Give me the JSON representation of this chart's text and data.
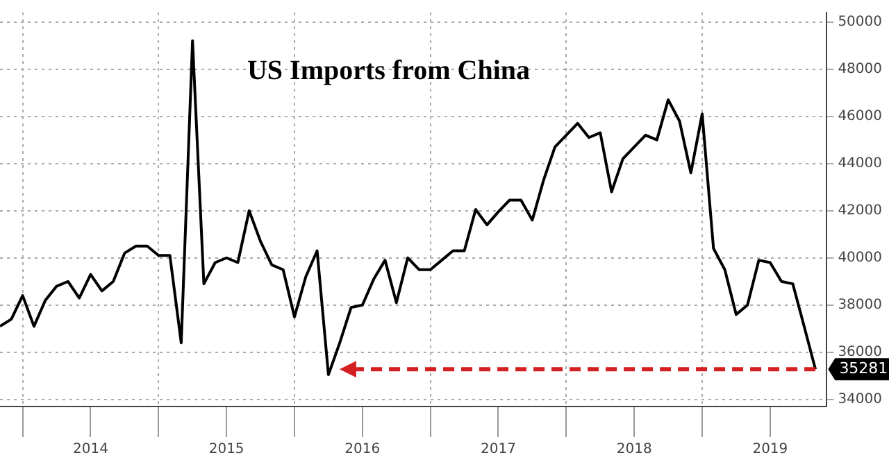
{
  "chart_data": {
    "type": "line",
    "title": "US Imports from China",
    "x": [
      "2013-11",
      "2013-12",
      "2014-01",
      "2014-02",
      "2014-03",
      "2014-04",
      "2014-05",
      "2014-06",
      "2014-07",
      "2014-08",
      "2014-09",
      "2014-10",
      "2014-11",
      "2014-12",
      "2015-01",
      "2015-02",
      "2015-03",
      "2015-04",
      "2015-05",
      "2015-06",
      "2015-07",
      "2015-08",
      "2015-09",
      "2015-10",
      "2015-11",
      "2015-12",
      "2016-01",
      "2016-02",
      "2016-03",
      "2016-04",
      "2016-05",
      "2016-06",
      "2016-07",
      "2016-08",
      "2016-09",
      "2016-10",
      "2016-11",
      "2016-12",
      "2017-01",
      "2017-02",
      "2017-03",
      "2017-04",
      "2017-05",
      "2017-06",
      "2017-07",
      "2017-08",
      "2017-09",
      "2017-10",
      "2017-11",
      "2017-12",
      "2018-01",
      "2018-02",
      "2018-03",
      "2018-04",
      "2018-05",
      "2018-06",
      "2018-07",
      "2018-08",
      "2018-09",
      "2018-10",
      "2018-11",
      "2018-12",
      "2019-01",
      "2019-02",
      "2019-03",
      "2019-04",
      "2019-05",
      "2019-06",
      "2019-07",
      "2019-08",
      "2019-09",
      "2019-10",
      "2019-11"
    ],
    "series": [
      {
        "color": "#000000",
        "values": [
          37100,
          37400,
          38400,
          37100,
          38200,
          38800,
          39000,
          38300,
          39300,
          38600,
          39000,
          40200,
          40500,
          40500,
          40100,
          40100,
          36400,
          49200,
          38900,
          39800,
          40000,
          39800,
          42000,
          40700,
          39700,
          39500,
          37500,
          39200,
          40300,
          35050,
          36400,
          37900,
          38000,
          39100,
          39900,
          38100,
          40000,
          39500,
          39500,
          39900,
          40300,
          40300,
          42050,
          41400,
          41950,
          42450,
          42450,
          41600,
          43300,
          44700,
          45200,
          45700,
          45100,
          45300,
          42800,
          44200,
          44700,
          45200,
          45000,
          46700,
          45800,
          43600,
          46100,
          40400,
          39500,
          37600,
          38000,
          39900,
          39800,
          39000,
          38900,
          37100,
          35281
        ]
      }
    ],
    "xlim": [
      "2013-11",
      "2019-12"
    ],
    "xticks": [
      {
        "value": "2014-01",
        "label": null
      },
      {
        "value": "2014-07",
        "label": "2014"
      },
      {
        "value": "2015-01",
        "label": null
      },
      {
        "value": "2015-07",
        "label": "2015"
      },
      {
        "value": "2016-01",
        "label": null
      },
      {
        "value": "2016-07",
        "label": "2016"
      },
      {
        "value": "2017-01",
        "label": null
      },
      {
        "value": "2017-07",
        "label": "2017"
      },
      {
        "value": "2018-01",
        "label": null
      },
      {
        "value": "2018-07",
        "label": "2018"
      },
      {
        "value": "2019-01",
        "label": null
      },
      {
        "value": "2019-07",
        "label": "2019"
      }
    ],
    "ylim": [
      33700,
      50400
    ],
    "yticks": [
      34000,
      36000,
      38000,
      40000,
      42000,
      44000,
      46000,
      48000,
      50000
    ],
    "annotations": [
      {
        "text": "35281",
        "x": "2019-11",
        "y": 35281
      }
    ],
    "grid": true,
    "legend": false,
    "marker": "none",
    "line_style": "solid"
  }
}
